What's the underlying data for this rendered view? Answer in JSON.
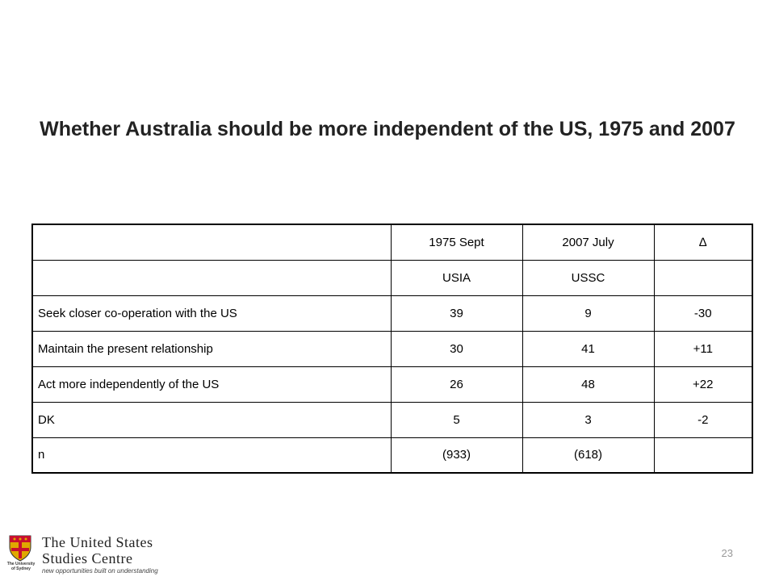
{
  "title": "Whether Australia should be more independent of the US, 1975 and 2007",
  "table": {
    "header_row": [
      "",
      "1975 Sept",
      "2007 July",
      "∆"
    ],
    "source_row": [
      "",
      "USIA",
      "USSC",
      ""
    ],
    "rows": [
      {
        "label": "Seek closer co-operation with the US",
        "v1975": "39",
        "v2007": "9",
        "delta": "-30"
      },
      {
        "label": "Maintain the present relationship",
        "v1975": "30",
        "v2007": "41",
        "delta": "+11"
      },
      {
        "label": "Act more independently of the US",
        "v1975": "26",
        "v2007": "48",
        "delta": "+22"
      },
      {
        "label": "DK",
        "v1975": "5",
        "v2007": "3",
        "delta": "-2"
      },
      {
        "label": "n",
        "v1975": "(933)",
        "v2007": "(618)",
        "delta": ""
      }
    ]
  },
  "footer": {
    "page_number": "23",
    "logo_line1": "The United States",
    "logo_line2": "Studies Centre",
    "logo_tagline": "new opportunities built on understanding",
    "crest_caption": "The University of Sydney",
    "colors": {
      "crest_red": "#c8102e",
      "crest_gold": "#e0a800"
    }
  }
}
